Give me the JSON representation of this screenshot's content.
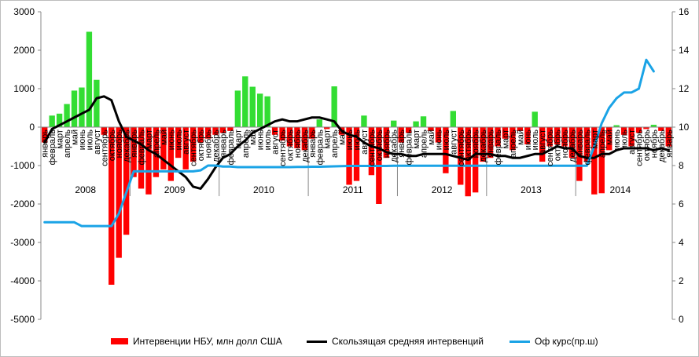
{
  "chart_data": {
    "type": "bar",
    "start": "2008-01",
    "years": [
      "2008",
      "2009",
      "2010",
      "2011",
      "2012",
      "2013",
      "2014"
    ],
    "month_names": [
      "январь",
      "февраль",
      "март",
      "апрель",
      "май",
      "июнь",
      "июль",
      "август",
      "сентябрь",
      "октябрь",
      "ноябрь",
      "декабрь"
    ],
    "y_left": {
      "min": -5000,
      "max": 3000,
      "step": 1000,
      "ticks": [
        "3000",
        "2000",
        "1000",
        "0",
        "-1000",
        "-2000",
        "-3000",
        "-4000",
        "-5000"
      ]
    },
    "y_right": {
      "min": 0,
      "max": 16,
      "step": 2,
      "ticks": [
        "16",
        "14",
        "12",
        "10",
        "8",
        "6",
        "4",
        "2",
        "0"
      ]
    },
    "series": [
      {
        "name": "Интервенции  НБУ, млн долл США",
        "kind": "bar",
        "axis": "left",
        "colors": {
          "positive": "#33dd33",
          "negative": "#ff0000"
        },
        "values": [
          -400,
          300,
          350,
          600,
          950,
          1030,
          2480,
          1230,
          -200,
          -4100,
          -3400,
          -2800,
          -1300,
          -1600,
          -1750,
          -1300,
          -1100,
          -1400,
          -800,
          -1100,
          -900,
          -400,
          -300,
          -200,
          -150,
          -100,
          950,
          1320,
          1050,
          870,
          800,
          -200,
          -350,
          -500,
          -550,
          -600,
          -300,
          200,
          -50,
          1060,
          -200,
          -1500,
          -1400,
          300,
          -1250,
          -2000,
          -800,
          170,
          -400,
          -150,
          150,
          280,
          -100,
          -400,
          -1200,
          420,
          -1500,
          -1800,
          -1700,
          -900,
          -800,
          -500,
          -300,
          -600,
          -100,
          -450,
          400,
          -900,
          -500,
          -450,
          -500,
          -800,
          -1400,
          -900,
          -1750,
          -1720,
          -600,
          50,
          -200,
          -500,
          -150,
          -50,
          60,
          -100,
          -500
        ]
      },
      {
        "name": "Скользящая средняя  интервенций",
        "kind": "line",
        "axis": "left",
        "color": "#000000",
        "values": [
          -400,
          -50,
          50,
          150,
          250,
          350,
          450,
          750,
          800,
          700,
          150,
          -250,
          -350,
          -450,
          -600,
          -700,
          -850,
          -1000,
          -1150,
          -1300,
          -1550,
          -1600,
          -1350,
          -1050,
          -800,
          -700,
          -500,
          -350,
          -150,
          -50,
          50,
          150,
          200,
          150,
          150,
          200,
          250,
          250,
          200,
          150,
          -100,
          -200,
          -250,
          -400,
          -500,
          -550,
          -650,
          -700,
          -700,
          -750,
          -750,
          -700,
          -700,
          -700,
          -700,
          -750,
          -800,
          -850,
          -700,
          -700,
          -700,
          -750,
          -750,
          -800,
          -800,
          -750,
          -700,
          -700,
          -600,
          -500,
          -550,
          -550,
          -750,
          -800,
          -800,
          -700,
          -700,
          -600,
          -550,
          -550,
          -550,
          -550,
          -600,
          -550,
          -600
        ]
      },
      {
        "name": "Оф курс(пр.ш)",
        "kind": "line",
        "axis": "right",
        "color": "#1aa3e6",
        "values": [
          5.05,
          5.05,
          5.05,
          5.05,
          5.05,
          4.85,
          4.85,
          4.85,
          4.85,
          4.85,
          5.5,
          6.6,
          7.7,
          7.7,
          7.7,
          7.7,
          7.7,
          7.7,
          7.7,
          7.7,
          7.7,
          7.75,
          8.0,
          8.0,
          7.95,
          7.95,
          7.92,
          7.92,
          7.92,
          7.92,
          7.92,
          7.92,
          7.92,
          7.92,
          7.93,
          7.93,
          7.94,
          7.94,
          7.95,
          7.96,
          7.97,
          7.98,
          7.98,
          7.98,
          7.98,
          7.98,
          7.98,
          7.99,
          7.99,
          7.99,
          7.99,
          7.99,
          7.99,
          7.99,
          7.99,
          7.99,
          7.99,
          7.99,
          7.99,
          7.99,
          7.99,
          7.99,
          7.99,
          7.99,
          7.99,
          7.99,
          7.99,
          7.99,
          7.99,
          7.99,
          7.99,
          7.99,
          7.99,
          7.99,
          9.0,
          10.2,
          11.0,
          11.5,
          11.8,
          11.8,
          12.0,
          13.5,
          12.9
        ]
      }
    ],
    "legend_position": "bottom",
    "grid": false
  }
}
